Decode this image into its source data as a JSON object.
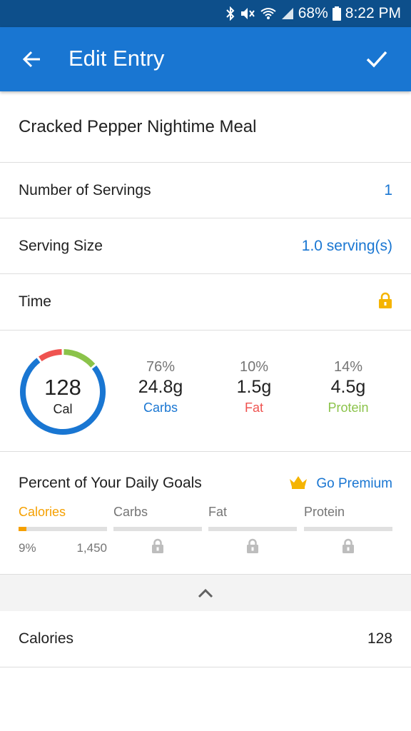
{
  "status_bar": {
    "battery": "68%",
    "time": "8:22 PM"
  },
  "header": {
    "title": "Edit Entry"
  },
  "food": {
    "name": "Cracked Pepper Nightime Meal"
  },
  "servings": {
    "label": "Number of Servings",
    "value": "1"
  },
  "serving_size": {
    "label": "Serving Size",
    "value": "1.0 serving(s)"
  },
  "time": {
    "label": "Time"
  },
  "summary": {
    "calories": "128",
    "cal_label": "Cal",
    "macros": [
      {
        "percent": "76%",
        "amount": "24.8g",
        "name": "Carbs",
        "color": "#1976d2",
        "fraction": 0.76
      },
      {
        "percent": "10%",
        "amount": "1.5g",
        "name": "Fat",
        "color": "#ef5350",
        "fraction": 0.1
      },
      {
        "percent": "14%",
        "amount": "4.5g",
        "name": "Protein",
        "color": "#8bc34a",
        "fraction": 0.14
      }
    ]
  },
  "goals": {
    "title": "Percent of Your Daily Goals",
    "premium_label": "Go Premium",
    "calories": {
      "name": "Calories",
      "percent": "9%",
      "goal": "1,450",
      "fraction": 0.09,
      "color": "#f5a000"
    },
    "locked": [
      {
        "name": "Carbs"
      },
      {
        "name": "Fat"
      },
      {
        "name": "Protein"
      }
    ]
  },
  "nutrition": {
    "calories_label": "Calories",
    "calories_value": "128"
  },
  "colors": {
    "primary": "#1976d2",
    "status_bar": "#0d4f8b",
    "lock": "#f5b400",
    "crown": "#f5b400"
  }
}
